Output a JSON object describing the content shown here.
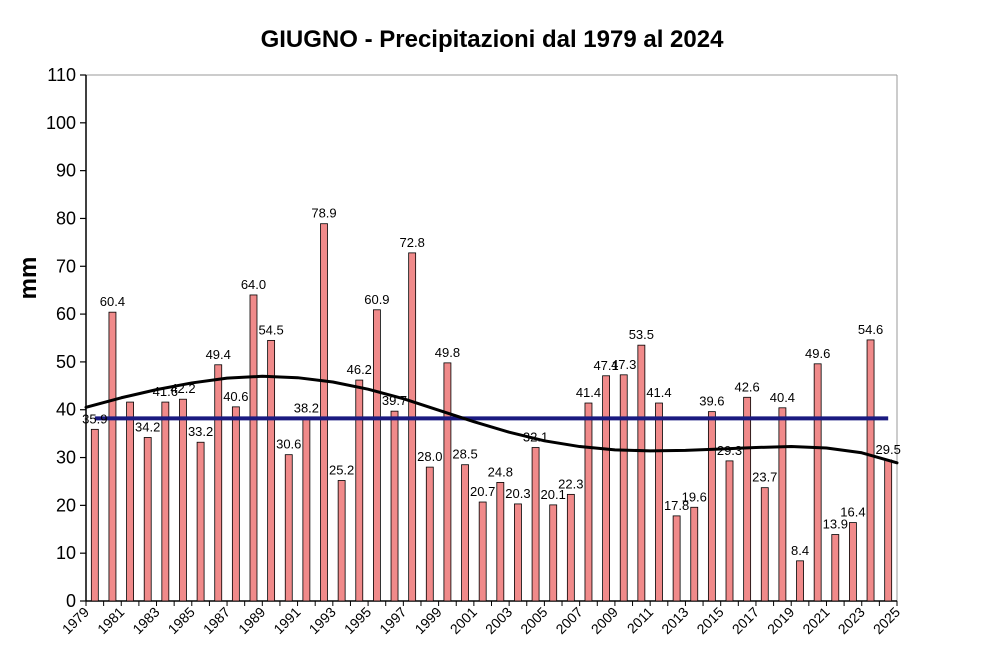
{
  "chart_data": {
    "type": "bar",
    "title": "GIUGNO - Precipitazioni dal 1979 al 2024",
    "ylabel": "mm",
    "xlabel": "",
    "ylim": [
      0,
      110
    ],
    "y_ticks": [
      0,
      10,
      20,
      30,
      40,
      50,
      60,
      70,
      80,
      90,
      100,
      110
    ],
    "x_range": [
      1979,
      2025
    ],
    "x_tick_labels": [
      "1979",
      "1981",
      "1983",
      "1985",
      "1987",
      "1989",
      "1991",
      "1993",
      "1995",
      "1997",
      "1999",
      "2001",
      "2003",
      "2005",
      "2007",
      "2009",
      "2011",
      "2013",
      "2015",
      "2017",
      "2019",
      "2021",
      "2023",
      "2025"
    ],
    "years": [
      1979,
      1980,
      1981,
      1982,
      1983,
      1984,
      1985,
      1986,
      1987,
      1988,
      1989,
      1990,
      1991,
      1992,
      1993,
      1994,
      1995,
      1996,
      1997,
      1998,
      1999,
      2000,
      2001,
      2002,
      2003,
      2004,
      2005,
      2006,
      2007,
      2008,
      2009,
      2010,
      2011,
      2012,
      2013,
      2014,
      2015,
      2016,
      2017,
      2018,
      2019,
      2020,
      2021,
      2022,
      2023,
      2024
    ],
    "values": [
      35.9,
      60.4,
      41.6,
      34.2,
      41.6,
      42.2,
      33.2,
      49.4,
      40.6,
      64.0,
      54.5,
      30.6,
      38.2,
      78.9,
      25.2,
      46.2,
      60.9,
      39.7,
      72.8,
      28.0,
      49.8,
      28.5,
      20.7,
      24.8,
      20.3,
      32.1,
      20.1,
      22.3,
      41.4,
      47.1,
      47.3,
      53.5,
      41.4,
      17.8,
      19.6,
      39.6,
      29.3,
      42.6,
      23.7,
      40.4,
      8.4,
      49.6,
      13.9,
      16.4,
      54.6,
      29.5
    ],
    "value_labels": [
      "35.9",
      "60.4",
      "",
      "34.2",
      "41.6",
      "42.2",
      "33.2",
      "49.4",
      "40.6",
      "64.0",
      "54.5",
      "30.6",
      "38.2",
      "78.9",
      "25.2",
      "46.2",
      "60.9",
      "39.7",
      "72.8",
      "28.0",
      "49.8",
      "28.5",
      "20.7",
      "24.8",
      "20.3",
      "32.1",
      "20.1",
      "22.3",
      "41.4",
      "47.1",
      "47.3",
      "53.5",
      "41.4",
      "17.8",
      "19.6",
      "39.6",
      "29.3",
      "42.6",
      "23.7",
      "40.4",
      "8.4",
      "49.6",
      "13.9",
      "16.4",
      "54.6",
      "29.5"
    ],
    "mean_line": 38.2,
    "trend_curve": {
      "x": [
        1979,
        1981,
        1983,
        1985,
        1987,
        1989,
        1991,
        1993,
        1995,
        1997,
        1999,
        2001,
        2003,
        2005,
        2007,
        2009,
        2011,
        2013,
        2015,
        2017,
        2019,
        2021,
        2023,
        2025
      ],
      "y": [
        40.5,
        42.5,
        44.2,
        45.6,
        46.6,
        47.0,
        46.7,
        45.8,
        44.3,
        42.3,
        39.9,
        37.5,
        35.3,
        33.5,
        32.3,
        31.6,
        31.4,
        31.5,
        31.8,
        32.1,
        32.3,
        32.0,
        31.0,
        28.9
      ]
    },
    "colors": {
      "bar_fill": "#f08a8a",
      "bar_stroke": "#000000",
      "mean_line": "#1a1a80",
      "trend_line": "#000000"
    },
    "grid": false
  }
}
